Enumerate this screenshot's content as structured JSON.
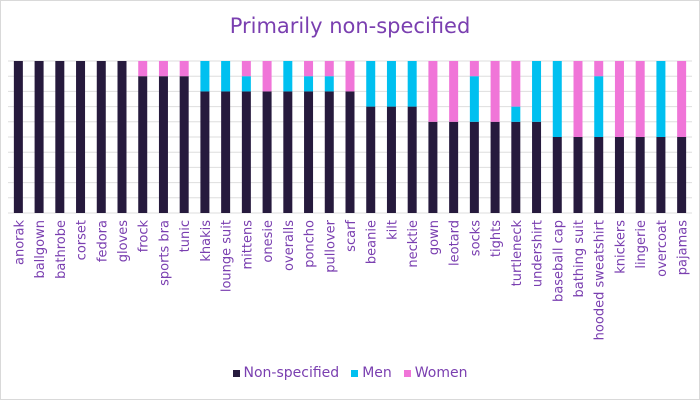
{
  "chart_data": {
    "type": "bar",
    "stacked": true,
    "percent": true,
    "title": "Primarily non-specified",
    "xlabel": "",
    "ylabel": "",
    "ylim": [
      0,
      100
    ],
    "grid": true,
    "legend_position": "bottom",
    "categories": [
      "anorak",
      "ballgown",
      "bathrobe",
      "corset",
      "fedora",
      "gloves",
      "frock",
      "sports bra",
      "tunic",
      "khakis",
      "lounge suit",
      "mittens",
      "onesie",
      "overalls",
      "poncho",
      "pullover",
      "scarf",
      "beanie",
      "kilt",
      "necktie",
      "gown",
      "leotard",
      "socks",
      "tights",
      "turtleneck",
      "undershirt",
      "baseball cap",
      "bathing suit",
      "hooded sweatshirt",
      "knickers",
      "lingerie",
      "overcoat",
      "pajamas"
    ],
    "series": [
      {
        "name": "Non-specified",
        "color": "#261a3d",
        "values": [
          100,
          100,
          100,
          100,
          100,
          100,
          90,
          90,
          90,
          80,
          80,
          80,
          80,
          80,
          80,
          80,
          80,
          70,
          70,
          70,
          60,
          60,
          60,
          60,
          60,
          60,
          50,
          50,
          50,
          50,
          50,
          50,
          50
        ]
      },
      {
        "name": "Men",
        "color": "#00c0f0",
        "values": [
          0,
          0,
          0,
          0,
          0,
          0,
          0,
          0,
          0,
          20,
          20,
          10,
          0,
          20,
          10,
          10,
          0,
          30,
          30,
          30,
          0,
          0,
          30,
          0,
          10,
          40,
          50,
          0,
          40,
          0,
          0,
          50,
          0
        ]
      },
      {
        "name": "Women",
        "color": "#f075d8",
        "values": [
          0,
          0,
          0,
          0,
          0,
          0,
          10,
          10,
          10,
          0,
          0,
          10,
          20,
          0,
          10,
          10,
          20,
          0,
          0,
          0,
          40,
          40,
          10,
          40,
          30,
          0,
          0,
          50,
          10,
          50,
          50,
          0,
          50
        ]
      }
    ]
  }
}
